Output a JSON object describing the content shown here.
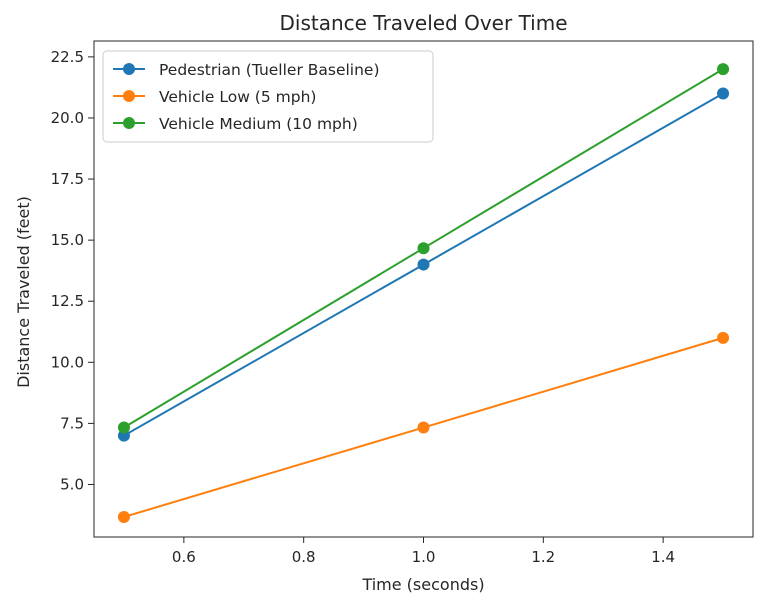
{
  "chart_data": {
    "type": "line",
    "title": "Distance Traveled Over Time",
    "xlabel": "Time (seconds)",
    "ylabel": "Distance Traveled (feet)",
    "x": [
      0.5,
      1.0,
      1.5
    ],
    "xlim": [
      0.45,
      1.55
    ],
    "ylim": [
      2.85,
      23.15
    ],
    "xticks": [
      0.6,
      0.8,
      1.0,
      1.2,
      1.4
    ],
    "xtick_labels": [
      "0.6",
      "0.8",
      "1.0",
      "1.2",
      "1.4"
    ],
    "yticks": [
      5.0,
      7.5,
      10.0,
      12.5,
      15.0,
      17.5,
      20.0,
      22.5
    ],
    "ytick_labels": [
      "5.0",
      "7.5",
      "10.0",
      "12.5",
      "15.0",
      "17.5",
      "20.0",
      "22.5"
    ],
    "grid": false,
    "legend_position": "top-left",
    "series": [
      {
        "name": "Pedestrian (Tueller Baseline)",
        "values": [
          7.0,
          14.0,
          21.0
        ],
        "color": "#1f77b4"
      },
      {
        "name": "Vehicle Low (5 mph)",
        "values": [
          3.67,
          7.33,
          11.0
        ],
        "color": "#ff7f0e"
      },
      {
        "name": "Vehicle Medium (10 mph)",
        "values": [
          7.33,
          14.67,
          22.0
        ],
        "color": "#2ca02c"
      }
    ]
  }
}
